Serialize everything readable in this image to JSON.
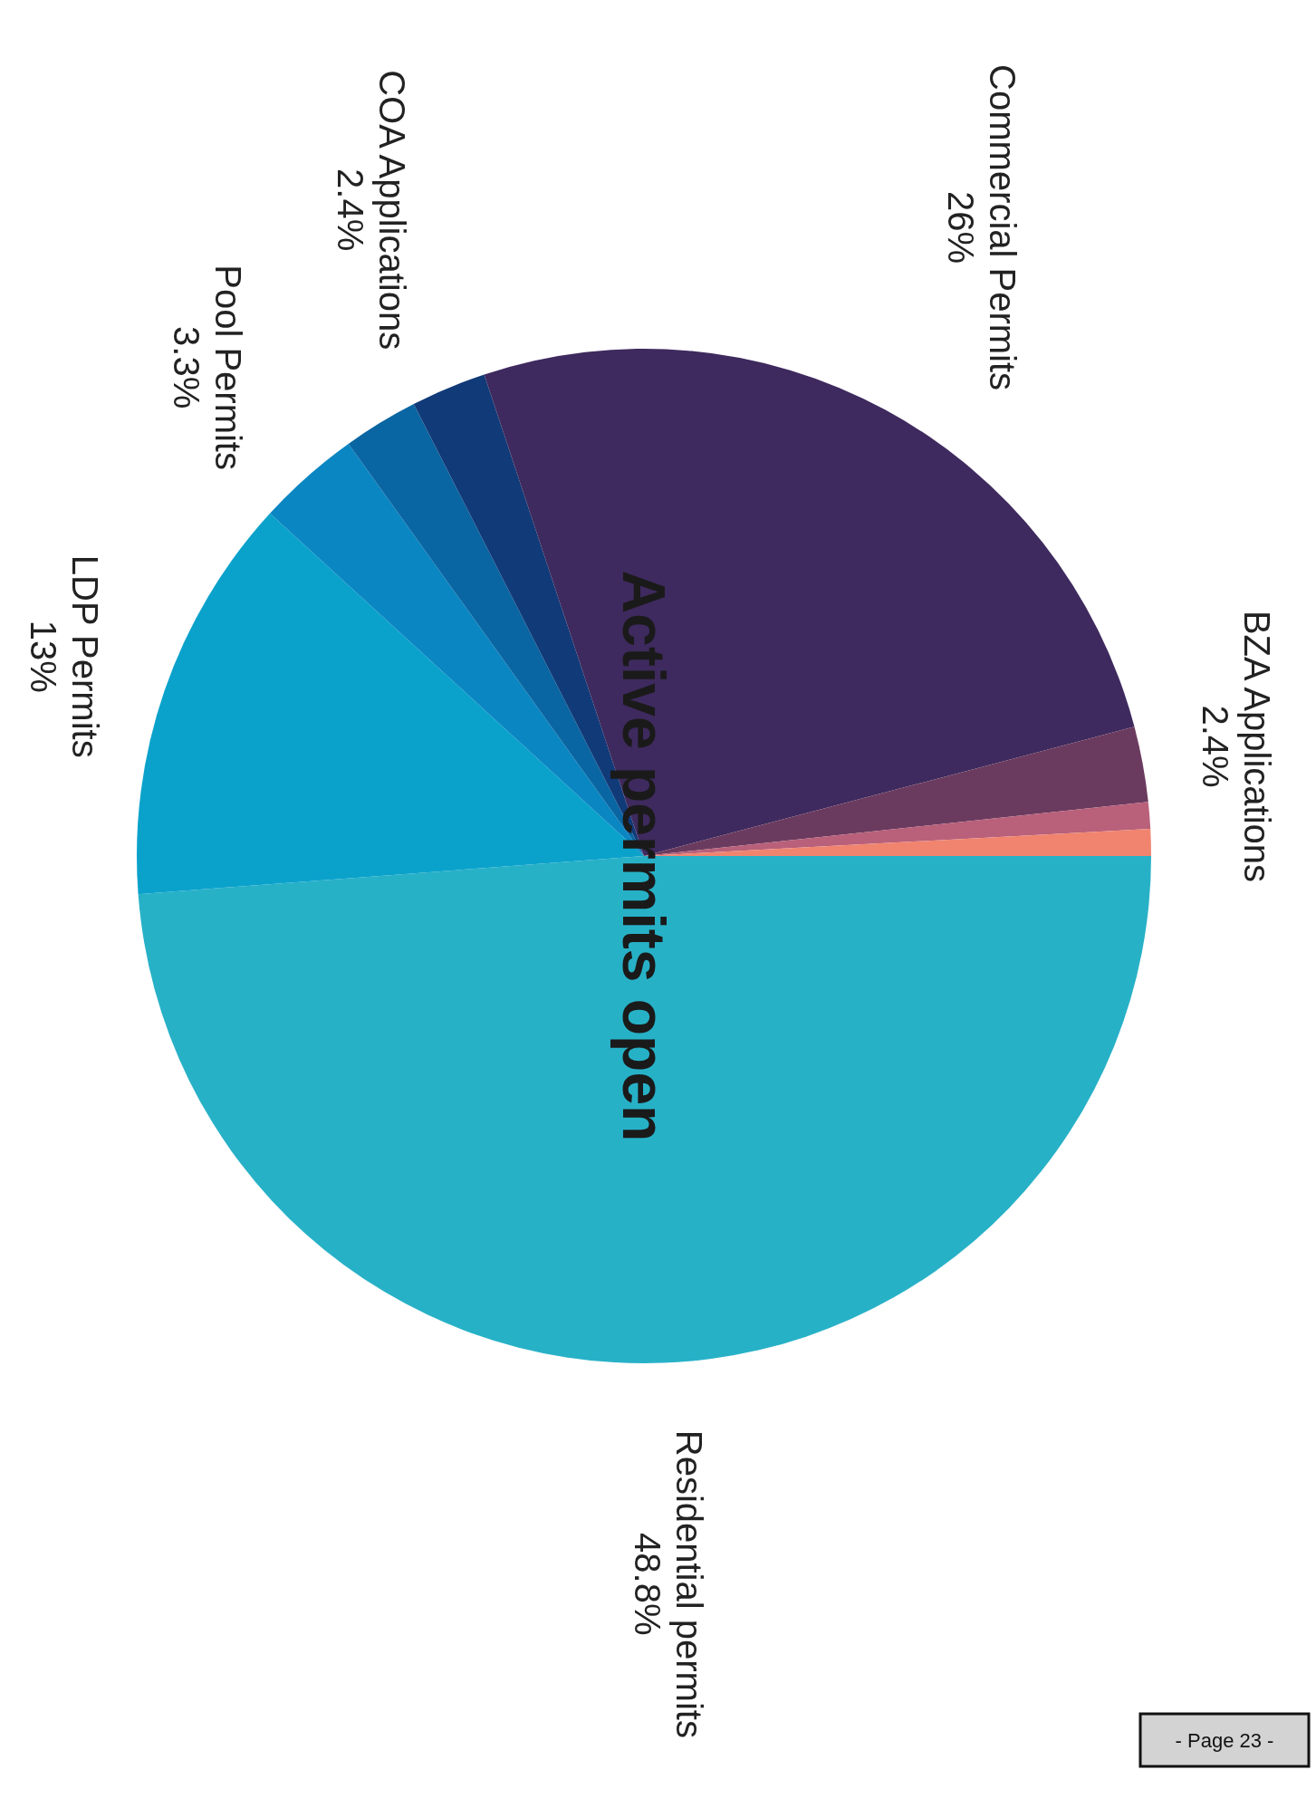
{
  "chart_data": {
    "type": "pie",
    "title": "Active permits open",
    "categories": [
      "Residential permits",
      "LDP Permits",
      "Pool Permits",
      null,
      "COA Applications",
      "Commercial Permits",
      "BZA Applications",
      null,
      null
    ],
    "values": [
      48.8,
      13,
      3.3,
      2.4,
      2.4,
      26,
      2.4,
      0.85,
      0.85
    ],
    "value_labels": [
      "48.8%",
      "13%",
      "3.3%",
      null,
      "2.4%",
      "26%",
      "2.4%",
      null,
      null
    ],
    "colors": [
      "#27b1c7",
      "#0aa2cb",
      "#0a86c2",
      "#0a66a2",
      "#113a78",
      "#3e2a5e",
      "#6b3b5f",
      "#b9607a",
      "#f0846f"
    ],
    "annotations": [
      "- Page 23 -"
    ]
  }
}
